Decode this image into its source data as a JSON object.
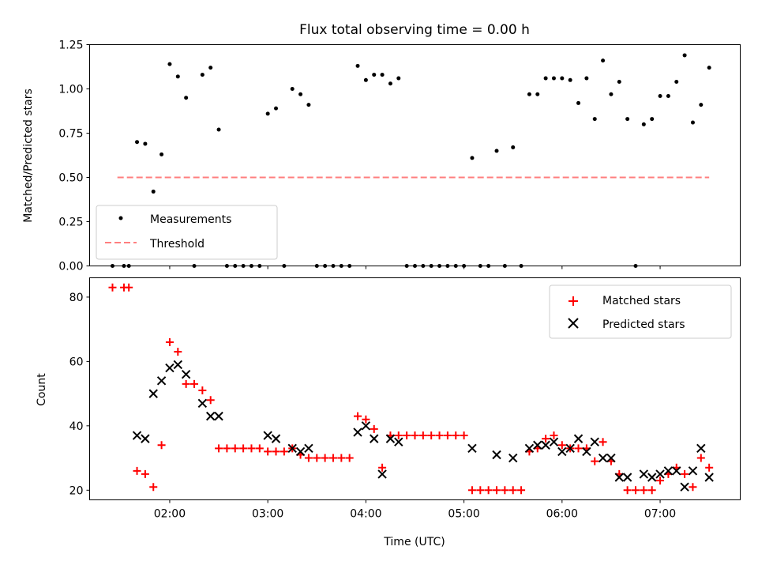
{
  "chart_data": [
    {
      "type": "scatter",
      "title": "Flux total observing time = 0.00 h",
      "xlabel": "",
      "ylabel": "Matched/Predicted stars",
      "xlim": [
        "01:11",
        "07:49"
      ],
      "ylim": [
        0,
        1.25
      ],
      "yticks": [
        0.0,
        0.25,
        0.5,
        0.75,
        1.0,
        1.25
      ],
      "ytick_labels": [
        "0.00",
        "0.25",
        "0.50",
        "0.75",
        "1.00",
        "1.25"
      ],
      "xticks": [
        "02:00",
        "03:00",
        "04:00",
        "05:00",
        "06:00",
        "07:00"
      ],
      "xtick_labels_shown": false,
      "grid": false,
      "legend": "lower-left",
      "series": [
        {
          "name": "Measurements",
          "marker": "dot",
          "color": "#000000",
          "points": [
            [
              "01:25",
              0.0
            ],
            [
              "01:32",
              0.0
            ],
            [
              "01:35",
              0.0
            ],
            [
              "01:40",
              0.7
            ],
            [
              "01:45",
              0.69
            ],
            [
              "01:50",
              0.42
            ],
            [
              "01:55",
              0.63
            ],
            [
              "02:00",
              1.14
            ],
            [
              "02:05",
              1.07
            ],
            [
              "02:10",
              0.95
            ],
            [
              "02:15",
              0.0
            ],
            [
              "02:20",
              1.08
            ],
            [
              "02:25",
              1.12
            ],
            [
              "02:30",
              0.77
            ],
            [
              "02:35",
              0.0
            ],
            [
              "02:40",
              0.0
            ],
            [
              "02:45",
              0.0
            ],
            [
              "02:50",
              0.0
            ],
            [
              "02:55",
              0.0
            ],
            [
              "03:00",
              0.86
            ],
            [
              "03:05",
              0.89
            ],
            [
              "03:10",
              0.0
            ],
            [
              "03:15",
              1.0
            ],
            [
              "03:20",
              0.97
            ],
            [
              "03:25",
              0.91
            ],
            [
              "03:30",
              0.0
            ],
            [
              "03:35",
              0.0
            ],
            [
              "03:40",
              0.0
            ],
            [
              "03:45",
              0.0
            ],
            [
              "03:50",
              0.0
            ],
            [
              "03:55",
              1.13
            ],
            [
              "04:00",
              1.05
            ],
            [
              "04:05",
              1.08
            ],
            [
              "04:10",
              1.08
            ],
            [
              "04:15",
              1.03
            ],
            [
              "04:20",
              1.06
            ],
            [
              "04:25",
              0.0
            ],
            [
              "04:30",
              0.0
            ],
            [
              "04:35",
              0.0
            ],
            [
              "04:40",
              0.0
            ],
            [
              "04:45",
              0.0
            ],
            [
              "04:50",
              0.0
            ],
            [
              "04:55",
              0.0
            ],
            [
              "05:00",
              0.0
            ],
            [
              "05:05",
              0.61
            ],
            [
              "05:10",
              0.0
            ],
            [
              "05:15",
              0.0
            ],
            [
              "05:20",
              0.65
            ],
            [
              "05:25",
              0.0
            ],
            [
              "05:30",
              0.67
            ],
            [
              "05:35",
              0.0
            ],
            [
              "05:40",
              0.97
            ],
            [
              "05:45",
              0.97
            ],
            [
              "05:50",
              1.06
            ],
            [
              "05:55",
              1.06
            ],
            [
              "06:00",
              1.06
            ],
            [
              "06:05",
              1.05
            ],
            [
              "06:10",
              0.92
            ],
            [
              "06:15",
              1.06
            ],
            [
              "06:20",
              0.83
            ],
            [
              "06:25",
              1.16
            ],
            [
              "06:30",
              0.97
            ],
            [
              "06:35",
              1.04
            ],
            [
              "06:40",
              0.83
            ],
            [
              "06:45",
              0.0
            ],
            [
              "06:50",
              0.8
            ],
            [
              "06:55",
              0.83
            ],
            [
              "07:00",
              0.96
            ],
            [
              "07:05",
              0.96
            ],
            [
              "07:10",
              1.04
            ],
            [
              "07:15",
              1.19
            ],
            [
              "07:20",
              0.81
            ],
            [
              "07:25",
              0.91
            ],
            [
              "07:30",
              1.12
            ]
          ]
        },
        {
          "name": "Threshold",
          "marker": "dashed-line",
          "color": "#ff7f7f",
          "points": [
            [
              "01:28",
              0.5
            ],
            [
              "07:30",
              0.5
            ]
          ]
        }
      ]
    },
    {
      "type": "scatter",
      "title": "",
      "xlabel": "Time (UTC)",
      "ylabel": "Count",
      "xlim": [
        "01:11",
        "07:49"
      ],
      "ylim": [
        17,
        86
      ],
      "yticks": [
        20,
        40,
        60,
        80
      ],
      "ytick_labels": [
        "20",
        "40",
        "60",
        "80"
      ],
      "xticks": [
        "02:00",
        "03:00",
        "04:00",
        "05:00",
        "06:00",
        "07:00"
      ],
      "xtick_labels": [
        "02:00",
        "03:00",
        "04:00",
        "05:00",
        "06:00",
        "07:00"
      ],
      "grid": false,
      "legend": "upper-right",
      "series": [
        {
          "name": "Matched stars",
          "marker": "plus",
          "color": "#ff0000",
          "points": [
            [
              "01:25",
              83
            ],
            [
              "01:32",
              83
            ],
            [
              "01:35",
              83
            ],
            [
              "01:40",
              26
            ],
            [
              "01:45",
              25
            ],
            [
              "01:50",
              21
            ],
            [
              "01:55",
              34
            ],
            [
              "02:00",
              66
            ],
            [
              "02:05",
              63
            ],
            [
              "02:10",
              53
            ],
            [
              "02:15",
              53
            ],
            [
              "02:20",
              51
            ],
            [
              "02:25",
              48
            ],
            [
              "02:30",
              33
            ],
            [
              "02:35",
              33
            ],
            [
              "02:40",
              33
            ],
            [
              "02:45",
              33
            ],
            [
              "02:50",
              33
            ],
            [
              "02:55",
              33
            ],
            [
              "03:00",
              32
            ],
            [
              "03:05",
              32
            ],
            [
              "03:10",
              32
            ],
            [
              "03:15",
              33
            ],
            [
              "03:20",
              31
            ],
            [
              "03:25",
              30
            ],
            [
              "03:30",
              30
            ],
            [
              "03:35",
              30
            ],
            [
              "03:40",
              30
            ],
            [
              "03:45",
              30
            ],
            [
              "03:50",
              30
            ],
            [
              "03:55",
              43
            ],
            [
              "04:00",
              42
            ],
            [
              "04:05",
              39
            ],
            [
              "04:10",
              27
            ],
            [
              "04:15",
              37
            ],
            [
              "04:20",
              37
            ],
            [
              "04:25",
              37
            ],
            [
              "04:30",
              37
            ],
            [
              "04:35",
              37
            ],
            [
              "04:40",
              37
            ],
            [
              "04:45",
              37
            ],
            [
              "04:50",
              37
            ],
            [
              "04:55",
              37
            ],
            [
              "05:00",
              37
            ],
            [
              "05:05",
              20
            ],
            [
              "05:10",
              20
            ],
            [
              "05:15",
              20
            ],
            [
              "05:20",
              20
            ],
            [
              "05:25",
              20
            ],
            [
              "05:30",
              20
            ],
            [
              "05:35",
              20
            ],
            [
              "05:40",
              32
            ],
            [
              "05:45",
              33
            ],
            [
              "05:50",
              36
            ],
            [
              "05:55",
              37
            ],
            [
              "06:00",
              34
            ],
            [
              "06:05",
              33
            ],
            [
              "06:10",
              33
            ],
            [
              "06:15",
              33
            ],
            [
              "06:20",
              29
            ],
            [
              "06:25",
              35
            ],
            [
              "06:30",
              29
            ],
            [
              "06:35",
              25
            ],
            [
              "06:40",
              20
            ],
            [
              "06:45",
              20
            ],
            [
              "06:50",
              20
            ],
            [
              "06:55",
              20
            ],
            [
              "07:00",
              23
            ],
            [
              "07:05",
              25
            ],
            [
              "07:10",
              27
            ],
            [
              "07:15",
              25
            ],
            [
              "07:20",
              21
            ],
            [
              "07:25",
              30
            ],
            [
              "07:30",
              27
            ]
          ]
        },
        {
          "name": "Predicted stars",
          "marker": "x",
          "color": "#000000",
          "points": [
            [
              "01:40",
              37
            ],
            [
              "01:45",
              36
            ],
            [
              "01:50",
              50
            ],
            [
              "01:55",
              54
            ],
            [
              "02:00",
              58
            ],
            [
              "02:05",
              59
            ],
            [
              "02:10",
              56
            ],
            [
              "02:20",
              47
            ],
            [
              "02:25",
              43
            ],
            [
              "02:30",
              43
            ],
            [
              "03:00",
              37
            ],
            [
              "03:05",
              36
            ],
            [
              "03:15",
              33
            ],
            [
              "03:20",
              32
            ],
            [
              "03:25",
              33
            ],
            [
              "03:55",
              38
            ],
            [
              "04:00",
              40
            ],
            [
              "04:05",
              36
            ],
            [
              "04:10",
              25
            ],
            [
              "04:15",
              36
            ],
            [
              "04:20",
              35
            ],
            [
              "05:05",
              33
            ],
            [
              "05:20",
              31
            ],
            [
              "05:30",
              30
            ],
            [
              "05:40",
              33
            ],
            [
              "05:45",
              34
            ],
            [
              "05:50",
              34
            ],
            [
              "05:55",
              35
            ],
            [
              "06:00",
              32
            ],
            [
              "06:05",
              33
            ],
            [
              "06:10",
              36
            ],
            [
              "06:15",
              32
            ],
            [
              "06:20",
              35
            ],
            [
              "06:25",
              30
            ],
            [
              "06:30",
              30
            ],
            [
              "06:35",
              24
            ],
            [
              "06:40",
              24
            ],
            [
              "06:50",
              25
            ],
            [
              "06:55",
              24
            ],
            [
              "07:00",
              25
            ],
            [
              "07:05",
              26
            ],
            [
              "07:10",
              26
            ],
            [
              "07:15",
              21
            ],
            [
              "07:20",
              26
            ],
            [
              "07:25",
              33
            ],
            [
              "07:30",
              24
            ]
          ]
        }
      ]
    }
  ]
}
